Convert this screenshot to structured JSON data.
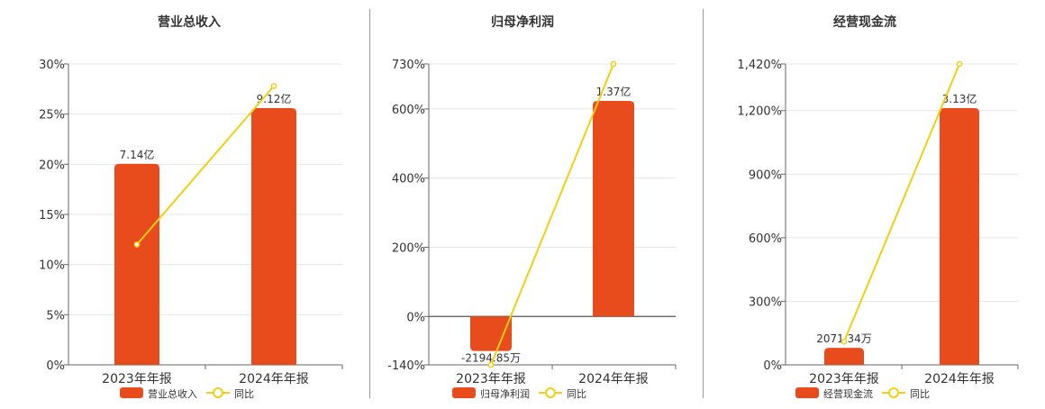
{
  "chart_data": [
    {
      "type": "bar",
      "title": "营业总收入",
      "categories": [
        "2023年年报",
        "2024年年报"
      ],
      "series": [
        {
          "name": "营业总收入",
          "kind": "bar",
          "values": [
            7.14,
            9.12
          ],
          "value_unit": "亿",
          "labels": [
            "7.14亿",
            "9.12亿"
          ],
          "color": "#E84C1C"
        },
        {
          "name": "同比",
          "kind": "line",
          "values": [
            12.0,
            27.8
          ],
          "color": "#F2CF12"
        }
      ],
      "yticks": [
        "0%",
        "5%",
        "10%",
        "15%",
        "20%",
        "25%",
        "30%"
      ],
      "ylim": [
        0,
        30
      ],
      "grid": true,
      "legend": "bottom"
    },
    {
      "type": "bar",
      "title": "归母净利润",
      "categories": [
        "2023年年报",
        "2024年年报"
      ],
      "series": [
        {
          "name": "归母净利润",
          "kind": "bar",
          "values": [
            -0.219485,
            1.37
          ],
          "value_unit": "亿",
          "labels": [
            "-2194.85万",
            "1.37亿"
          ],
          "color": "#E84C1C"
        },
        {
          "name": "同比",
          "kind": "line",
          "values": [
            -140,
            730
          ],
          "color": "#F2CF12"
        }
      ],
      "yticks": [
        "-140%",
        "0%",
        "200%",
        "400%",
        "600%",
        "730%"
      ],
      "ylim": [
        -140,
        730
      ],
      "grid": true,
      "legend": "bottom"
    },
    {
      "type": "bar",
      "title": "经营现金流",
      "categories": [
        "2023年年报",
        "2024年年报"
      ],
      "series": [
        {
          "name": "经营现金流",
          "kind": "bar",
          "values": [
            0.207134,
            3.13
          ],
          "value_unit": "亿",
          "labels": [
            "2071.34万",
            "3.13亿"
          ],
          "color": "#E84C1C"
        },
        {
          "name": "同比",
          "kind": "line",
          "values": [
            110,
            1420
          ],
          "color": "#F2CF12"
        }
      ],
      "yticks": [
        "0%",
        "300%",
        "600%",
        "900%",
        "1,200%",
        "1,420%"
      ],
      "ylim": [
        0,
        1420
      ],
      "grid": true,
      "legend": "bottom"
    }
  ]
}
